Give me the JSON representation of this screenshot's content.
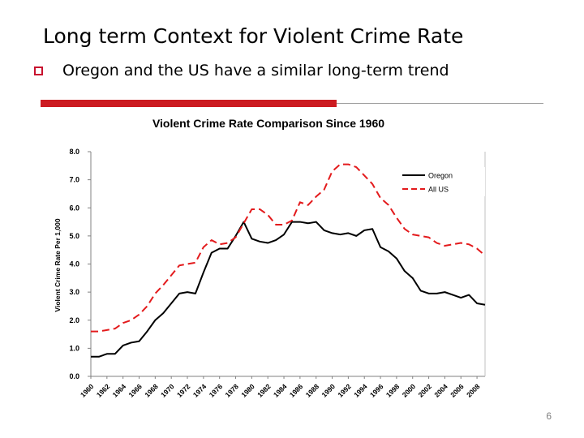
{
  "slide": {
    "title": "Long term Context for Violent Crime Rate",
    "bullet": "Oregon and the US have a similar long-term trend",
    "page_number": "6"
  },
  "colors": {
    "oregon": "#000000",
    "us": "#e31a1c",
    "accent_bar": "#cc1b21",
    "bullet_box": "#c8102e"
  },
  "chart_data": {
    "type": "line",
    "title": "Violent Crime Rate Comparison Since 1960",
    "xlabel": "",
    "ylabel": "Violent Crime Rate Per 1,000",
    "ylim": [
      0,
      8
    ],
    "yticks": [
      "0.0",
      "1.0",
      "2.0",
      "3.0",
      "4.0",
      "5.0",
      "6.0",
      "7.0",
      "8.0"
    ],
    "xticks": [
      "1960",
      "1962",
      "1964",
      "1966",
      "1968",
      "1970",
      "1972",
      "1974",
      "1976",
      "1978",
      "1980",
      "1982",
      "1984",
      "1986",
      "1988",
      "1990",
      "1992",
      "1994",
      "1996",
      "1998",
      "2000",
      "2002",
      "2004",
      "2006",
      "2008"
    ],
    "x": [
      1960,
      1961,
      1962,
      1963,
      1964,
      1965,
      1966,
      1967,
      1968,
      1969,
      1970,
      1971,
      1972,
      1973,
      1974,
      1975,
      1976,
      1977,
      1978,
      1979,
      1980,
      1981,
      1982,
      1983,
      1984,
      1985,
      1986,
      1987,
      1988,
      1989,
      1990,
      1991,
      1992,
      1993,
      1994,
      1995,
      1996,
      1997,
      1998,
      1999,
      2000,
      2001,
      2002,
      2003,
      2004,
      2005,
      2006,
      2007,
      2008,
      2009
    ],
    "legend_position": "top-right",
    "series": [
      {
        "name": "Oregon",
        "style": "solid",
        "values": [
          0.7,
          0.7,
          0.8,
          0.8,
          1.1,
          1.2,
          1.25,
          1.6,
          2.0,
          2.25,
          2.6,
          2.95,
          3.0,
          2.95,
          3.7,
          4.4,
          4.55,
          4.55,
          5.0,
          5.5,
          4.9,
          4.8,
          4.75,
          4.85,
          5.05,
          5.5,
          5.5,
          5.45,
          5.5,
          5.2,
          5.1,
          5.05,
          5.1,
          5.0,
          5.2,
          5.25,
          4.6,
          4.45,
          4.2,
          3.75,
          3.5,
          3.05,
          2.95,
          2.95,
          3.0,
          2.9,
          2.8,
          2.9,
          2.6,
          2.55
        ]
      },
      {
        "name": "All US",
        "style": "dashed",
        "values": [
          1.6,
          1.6,
          1.65,
          1.7,
          1.9,
          2.0,
          2.2,
          2.5,
          2.95,
          3.25,
          3.6,
          3.95,
          4.0,
          4.05,
          4.6,
          4.85,
          4.7,
          4.75,
          4.95,
          5.45,
          5.95,
          5.95,
          5.75,
          5.4,
          5.4,
          5.55,
          6.2,
          6.1,
          6.4,
          6.65,
          7.3,
          7.55,
          7.55,
          7.45,
          7.15,
          6.85,
          6.35,
          6.1,
          5.65,
          5.25,
          5.05,
          5.0,
          4.95,
          4.75,
          4.65,
          4.7,
          4.75,
          4.7,
          4.55,
          4.3
        ]
      }
    ]
  }
}
